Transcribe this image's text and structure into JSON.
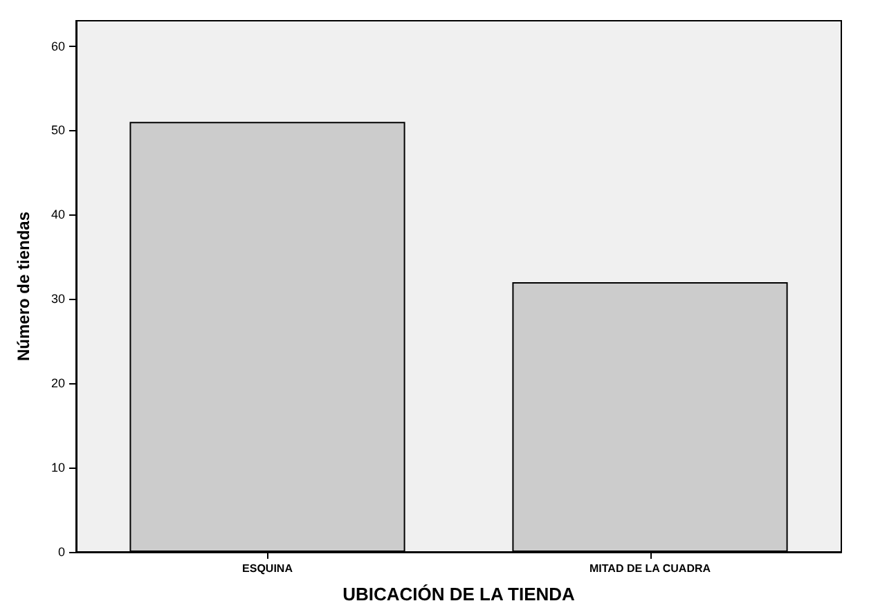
{
  "chart_data": {
    "type": "bar",
    "xlabel": "UBICACIÓN DE LA TIENDA",
    "ylabel": "Número de tiendas",
    "categories": [
      "ESQUINA",
      "MITAD DE LA CUADRA"
    ],
    "values": [
      51,
      32
    ],
    "color": "#cccccc",
    "ylim": [
      0,
      63
    ],
    "yticks": [
      0,
      10,
      20,
      30,
      40,
      50,
      60
    ],
    "grid": false
  }
}
